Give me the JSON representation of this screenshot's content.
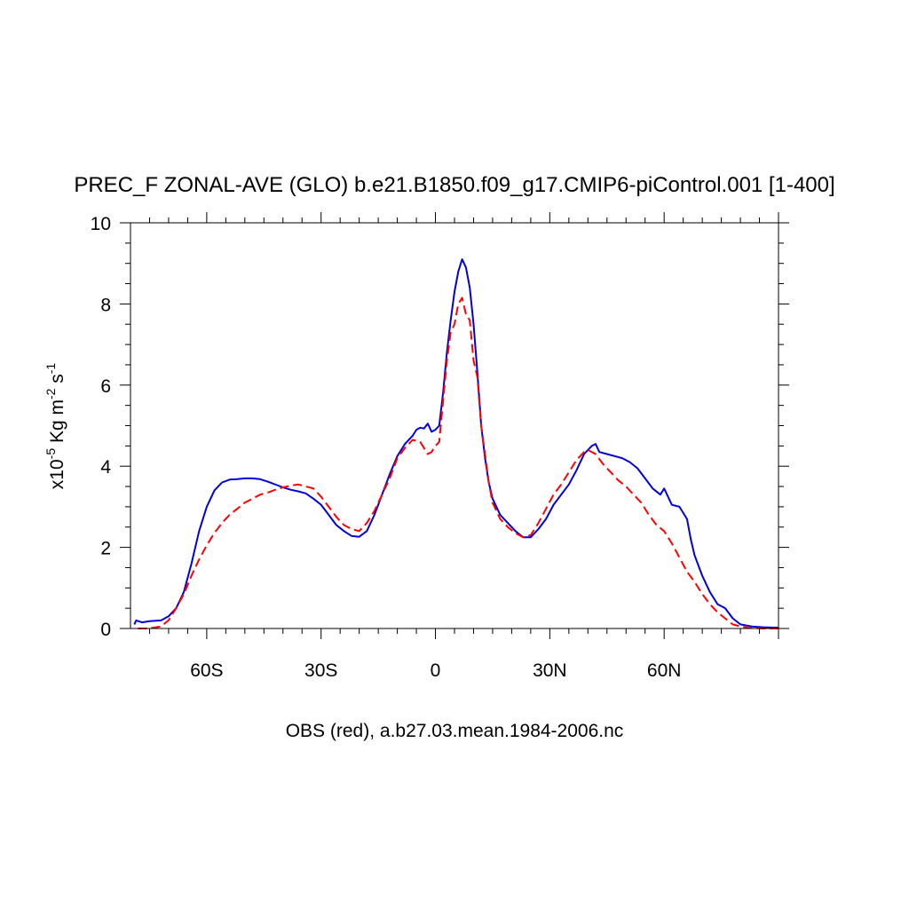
{
  "chart_data": {
    "type": "line",
    "title": "PREC_F ZONAL-AVE (GLO) b.e21.B1850.f09_g17.CMIP6-piControl.001 [1-400]",
    "xlabel": "OBS (red), a.b27.03.mean.1984-2006.nc",
    "ylabel": {
      "prefix": "x10",
      "exp": "-5",
      "unit1": " Kg m",
      "exp2": "-2",
      "unit2": " s",
      "exp3": "-1"
    },
    "xlim": [
      -80,
      90
    ],
    "ylim": [
      0,
      10
    ],
    "xticks": [
      {
        "value": -60,
        "label": "60S"
      },
      {
        "value": -30,
        "label": "30S"
      },
      {
        "value": 0,
        "label": "0"
      },
      {
        "value": 30,
        "label": "30N"
      },
      {
        "value": 60,
        "label": "60N"
      }
    ],
    "yticks": [
      {
        "value": 0,
        "label": "0"
      },
      {
        "value": 2,
        "label": "2"
      },
      {
        "value": 4,
        "label": "4"
      },
      {
        "value": 6,
        "label": "6"
      },
      {
        "value": 8,
        "label": "8"
      },
      {
        "value": 10,
        "label": "10"
      }
    ],
    "series": [
      {
        "name": "b.e21.B1850.f09_g17.CMIP6-piControl.001",
        "color": "#0000dd",
        "dash": "solid",
        "points": [
          [
            -79,
            0.1
          ],
          [
            -78.5,
            0.2
          ],
          [
            -77,
            0.15
          ],
          [
            -75,
            0.18
          ],
          [
            -72,
            0.2
          ],
          [
            -70,
            0.3
          ],
          [
            -68,
            0.5
          ],
          [
            -66,
            0.9
          ],
          [
            -64,
            1.6
          ],
          [
            -62,
            2.4
          ],
          [
            -60,
            3.0
          ],
          [
            -58,
            3.4
          ],
          [
            -56,
            3.6
          ],
          [
            -54,
            3.67
          ],
          [
            -52,
            3.68
          ],
          [
            -50,
            3.7
          ],
          [
            -48,
            3.7
          ],
          [
            -46,
            3.68
          ],
          [
            -44,
            3.62
          ],
          [
            -42,
            3.55
          ],
          [
            -40,
            3.48
          ],
          [
            -38,
            3.42
          ],
          [
            -36,
            3.38
          ],
          [
            -34,
            3.33
          ],
          [
            -32,
            3.2
          ],
          [
            -30,
            3.05
          ],
          [
            -28,
            2.8
          ],
          [
            -26,
            2.55
          ],
          [
            -24,
            2.4
          ],
          [
            -22,
            2.28
          ],
          [
            -20,
            2.26
          ],
          [
            -18,
            2.4
          ],
          [
            -16,
            2.8
          ],
          [
            -14,
            3.3
          ],
          [
            -12,
            3.8
          ],
          [
            -10,
            4.25
          ],
          [
            -8,
            4.55
          ],
          [
            -6,
            4.75
          ],
          [
            -5,
            4.9
          ],
          [
            -4,
            4.95
          ],
          [
            -3,
            4.93
          ],
          [
            -2,
            5.05
          ],
          [
            -1,
            4.85
          ],
          [
            0,
            4.9
          ],
          [
            1,
            5.0
          ],
          [
            2,
            5.8
          ],
          [
            3,
            6.8
          ],
          [
            4,
            7.6
          ],
          [
            5,
            8.3
          ],
          [
            6,
            8.8
          ],
          [
            7,
            9.1
          ],
          [
            8,
            8.9
          ],
          [
            9,
            8.4
          ],
          [
            10,
            7.5
          ],
          [
            11,
            6.3
          ],
          [
            12,
            5.0
          ],
          [
            13,
            4.2
          ],
          [
            14,
            3.6
          ],
          [
            15,
            3.2
          ],
          [
            17,
            2.8
          ],
          [
            19,
            2.6
          ],
          [
            21,
            2.4
          ],
          [
            23,
            2.25
          ],
          [
            25,
            2.25
          ],
          [
            27,
            2.45
          ],
          [
            29,
            2.7
          ],
          [
            31,
            3.05
          ],
          [
            33,
            3.3
          ],
          [
            35,
            3.55
          ],
          [
            37,
            3.9
          ],
          [
            39,
            4.3
          ],
          [
            41,
            4.5
          ],
          [
            42,
            4.55
          ],
          [
            43,
            4.35
          ],
          [
            45,
            4.3
          ],
          [
            47,
            4.25
          ],
          [
            49,
            4.2
          ],
          [
            51,
            4.1
          ],
          [
            53,
            3.95
          ],
          [
            55,
            3.7
          ],
          [
            57,
            3.45
          ],
          [
            59,
            3.3
          ],
          [
            60,
            3.45
          ],
          [
            61,
            3.25
          ],
          [
            62,
            3.05
          ],
          [
            64,
            3.0
          ],
          [
            66,
            2.7
          ],
          [
            67,
            2.2
          ],
          [
            68,
            1.8
          ],
          [
            70,
            1.3
          ],
          [
            72,
            0.9
          ],
          [
            74,
            0.6
          ],
          [
            76,
            0.5
          ],
          [
            78,
            0.25
          ],
          [
            80,
            0.1
          ],
          [
            83,
            0.05
          ],
          [
            86,
            0.03
          ],
          [
            90,
            0.02
          ]
        ]
      },
      {
        "name": "OBS",
        "color": "#ff0000",
        "dash": "dashed",
        "points": [
          [
            -78,
            0.0
          ],
          [
            -76,
            0.0
          ],
          [
            -74,
            0.02
          ],
          [
            -72,
            0.05
          ],
          [
            -70,
            0.2
          ],
          [
            -68,
            0.5
          ],
          [
            -66,
            0.85
          ],
          [
            -64,
            1.3
          ],
          [
            -62,
            1.7
          ],
          [
            -60,
            2.05
          ],
          [
            -58,
            2.35
          ],
          [
            -56,
            2.6
          ],
          [
            -54,
            2.8
          ],
          [
            -52,
            2.95
          ],
          [
            -50,
            3.1
          ],
          [
            -48,
            3.2
          ],
          [
            -46,
            3.3
          ],
          [
            -44,
            3.35
          ],
          [
            -42,
            3.42
          ],
          [
            -40,
            3.48
          ],
          [
            -38,
            3.52
          ],
          [
            -36,
            3.55
          ],
          [
            -34,
            3.5
          ],
          [
            -32,
            3.45
          ],
          [
            -30,
            3.25
          ],
          [
            -28,
            3.0
          ],
          [
            -26,
            2.75
          ],
          [
            -24,
            2.55
          ],
          [
            -22,
            2.45
          ],
          [
            -20,
            2.4
          ],
          [
            -18,
            2.6
          ],
          [
            -16,
            2.9
          ],
          [
            -14,
            3.3
          ],
          [
            -12,
            3.7
          ],
          [
            -10,
            4.2
          ],
          [
            -8,
            4.45
          ],
          [
            -6,
            4.65
          ],
          [
            -4,
            4.6
          ],
          [
            -3,
            4.45
          ],
          [
            -2,
            4.3
          ],
          [
            -1,
            4.35
          ],
          [
            0,
            4.5
          ],
          [
            1,
            4.6
          ],
          [
            2,
            5.6
          ],
          [
            3,
            6.6
          ],
          [
            4,
            7.3
          ],
          [
            5,
            7.5
          ],
          [
            6,
            8.0
          ],
          [
            7,
            8.15
          ],
          [
            8,
            7.75
          ],
          [
            9,
            7.6
          ],
          [
            10,
            6.6
          ],
          [
            11,
            6.2
          ],
          [
            12,
            5.0
          ],
          [
            13,
            4.3
          ],
          [
            14,
            3.6
          ],
          [
            15,
            3.1
          ],
          [
            17,
            2.7
          ],
          [
            19,
            2.5
          ],
          [
            21,
            2.35
          ],
          [
            23,
            2.25
          ],
          [
            25,
            2.3
          ],
          [
            27,
            2.6
          ],
          [
            29,
            2.95
          ],
          [
            31,
            3.3
          ],
          [
            33,
            3.55
          ],
          [
            35,
            3.85
          ],
          [
            37,
            4.15
          ],
          [
            39,
            4.35
          ],
          [
            40,
            4.4
          ],
          [
            42,
            4.3
          ],
          [
            44,
            4.05
          ],
          [
            46,
            3.85
          ],
          [
            48,
            3.65
          ],
          [
            50,
            3.5
          ],
          [
            52,
            3.3
          ],
          [
            54,
            3.1
          ],
          [
            56,
            2.8
          ],
          [
            58,
            2.55
          ],
          [
            60,
            2.4
          ],
          [
            62,
            2.1
          ],
          [
            64,
            1.75
          ],
          [
            66,
            1.4
          ],
          [
            68,
            1.15
          ],
          [
            70,
            0.85
          ],
          [
            72,
            0.6
          ],
          [
            74,
            0.4
          ],
          [
            76,
            0.25
          ],
          [
            78,
            0.1
          ],
          [
            80,
            0.05
          ],
          [
            82,
            0.02
          ],
          [
            86,
            0.0
          ],
          [
            90,
            0.0
          ]
        ]
      }
    ]
  }
}
